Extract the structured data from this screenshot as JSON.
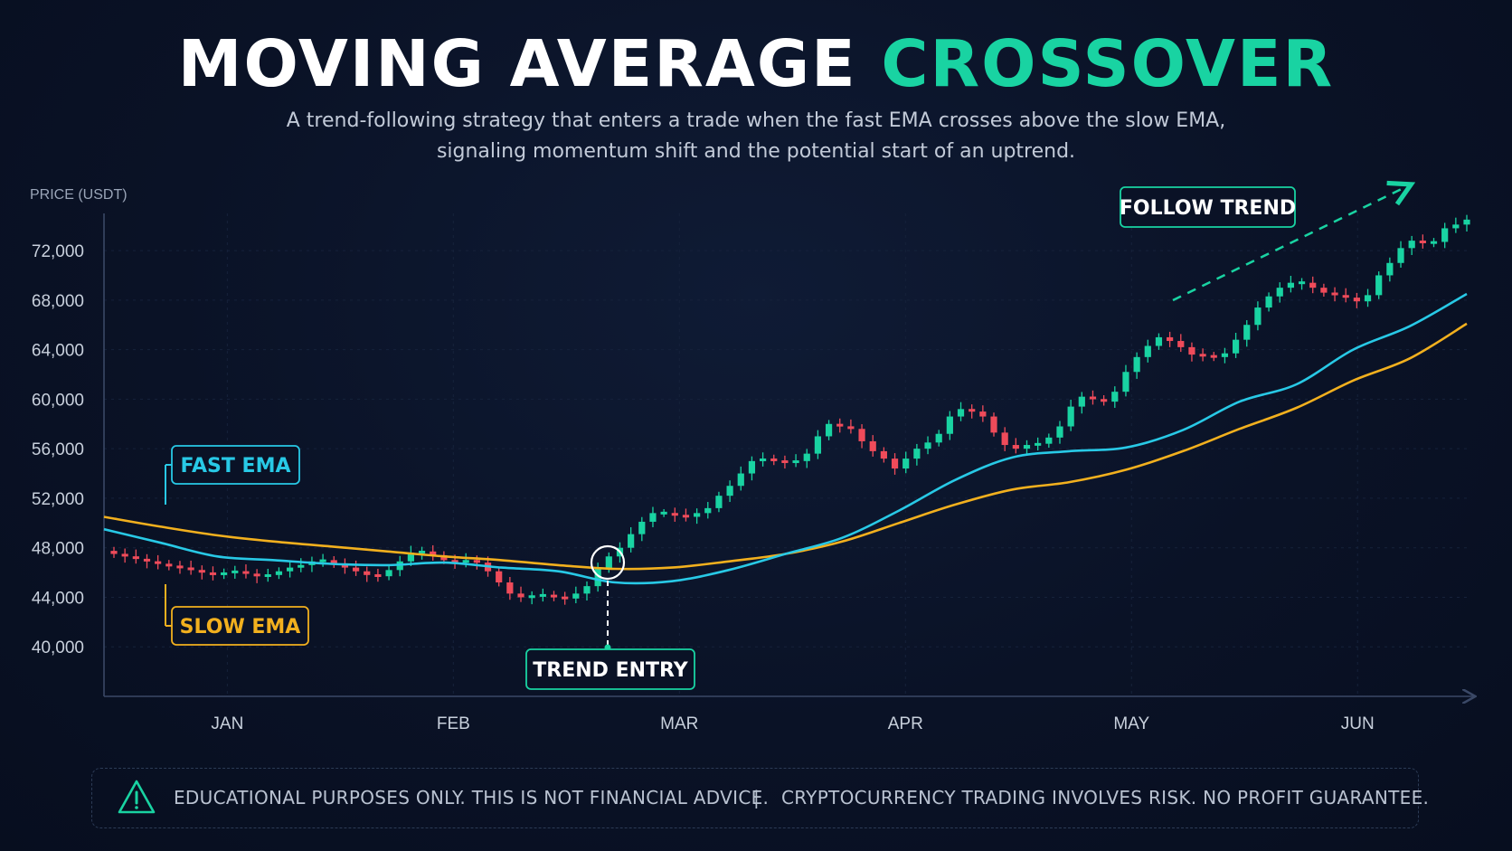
{
  "title": {
    "part1": "MOVING AVERAGE",
    "part2": "CROSSOVER"
  },
  "subtitle": {
    "line1": "A trend-following strategy that enters a trade when the fast EMA crosses above the slow EMA,",
    "line2": "signaling momentum shift and the potential start of an uptrend."
  },
  "colors": {
    "background": "#0a1226",
    "accent_green": "#19d3a2",
    "fast_ema": "#28c9e6",
    "slow_ema": "#f2b01e",
    "bull_candle": "#19d3a2",
    "bear_candle": "#ef4b5a"
  },
  "chart_data": {
    "type": "candlestick",
    "ylabel": "PRICE (USDT)",
    "ylim": [
      36000,
      75000
    ],
    "yticks": [
      40000,
      44000,
      48000,
      52000,
      56000,
      60000,
      64000,
      68000,
      72000
    ],
    "ytick_labels": [
      "40,000",
      "44,000",
      "48,000",
      "52,000",
      "56,000",
      "60,000",
      "64,000",
      "68,000",
      "72,000"
    ],
    "x_labels": [
      "JAN",
      "FEB",
      "MAR",
      "APR",
      "MAY",
      "JUN"
    ],
    "candles": {
      "closes": [
        47500,
        47300,
        47100,
        46900,
        46700,
        46500,
        46400,
        46200,
        46000,
        45800,
        46000,
        46100,
        45900,
        45700,
        45800,
        46100,
        46400,
        46600,
        46900,
        47000,
        46700,
        46400,
        46100,
        45800,
        45700,
        46200,
        46900,
        47600,
        47700,
        47400,
        47000,
        46800,
        47000,
        46800,
        46100,
        45200,
        44300,
        44000,
        44100,
        44200,
        44000,
        43900,
        44300,
        44900,
        46300,
        47300,
        48000,
        49100,
        50100,
        50800,
        50800,
        50600,
        50500,
        50800,
        51200,
        52200,
        53000,
        54000,
        55000,
        55200,
        55000,
        54900,
        55000,
        55600,
        57000,
        58000,
        57800,
        57600,
        56600,
        55800,
        55200,
        54400,
        55200,
        56000,
        56500,
        57200,
        58600,
        59200,
        59000,
        58600,
        57300,
        56300,
        56000,
        56300,
        56400,
        56900,
        57800,
        59400,
        60200,
        60000,
        59800,
        60600,
        62200,
        63400,
        64300,
        65000,
        64700,
        64200,
        63600,
        63500,
        63400,
        63700,
        64800,
        66000,
        67400,
        68300,
        69000,
        69400,
        69400,
        69000,
        68600,
        68400,
        68200,
        67900,
        68400,
        70000,
        71000,
        72200,
        72800,
        72600,
        72700,
        73800,
        74100,
        74500
      ]
    },
    "series": [
      {
        "name": "FAST EMA",
        "values": [
          49500,
          48400,
          47300,
          47000,
          46700,
          46600,
          46800,
          46400,
          46100,
          45200,
          45300,
          46200,
          47500,
          48800,
          51000,
          53500,
          55300,
          55800,
          56100,
          57500,
          59800,
          61200,
          64000,
          65900,
          68500
        ]
      },
      {
        "name": "SLOW EMA",
        "values": [
          50500,
          49700,
          49000,
          48500,
          48100,
          47700,
          47300,
          47000,
          46600,
          46300,
          46400,
          46900,
          47500,
          48500,
          50000,
          51500,
          52700,
          53300,
          54300,
          55800,
          57600,
          59300,
          61500,
          63300,
          66100
        ]
      }
    ],
    "annotations": {
      "fast_label": "FAST EMA",
      "slow_label": "SLOW EMA",
      "entry_label": "TREND ENTRY",
      "follow_label": "FOLLOW TREND"
    }
  },
  "disclaimer": {
    "left": "EDUCATIONAL PURPOSES ONLY. THIS IS NOT FINANCIAL ADVICE.",
    "separator": "|",
    "right": "CRYPTOCURRENCY TRADING INVOLVES RISK. NO PROFIT GUARANTEE."
  }
}
